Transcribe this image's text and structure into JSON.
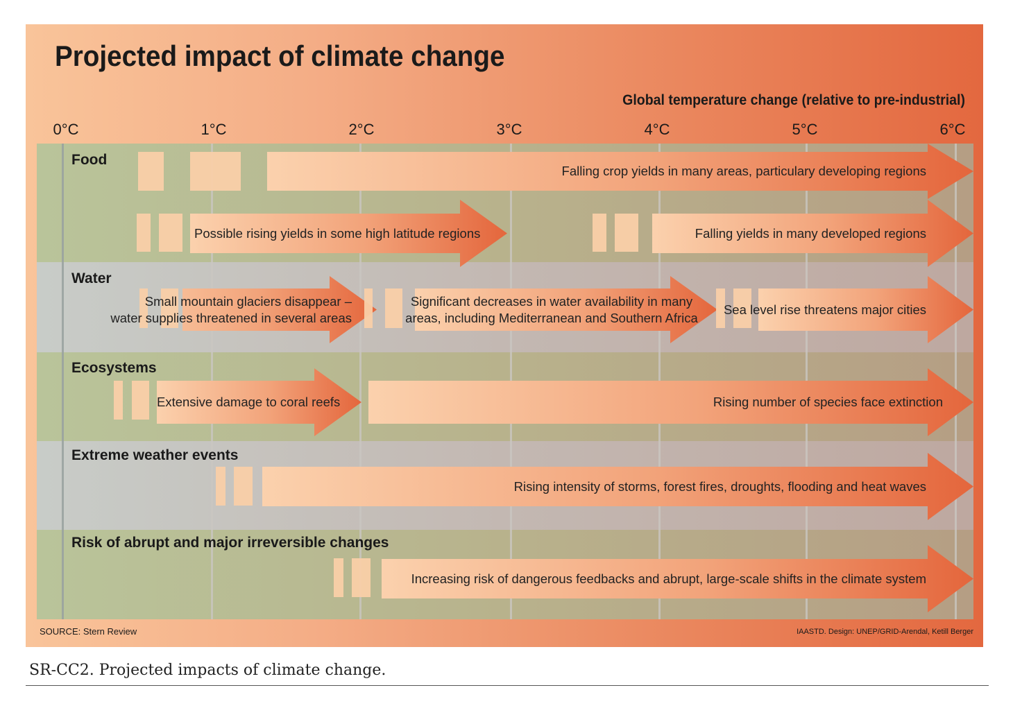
{
  "title": "Projected impact of climate change",
  "axis": {
    "title": "Global temperature change (relative to pre-industrial)",
    "ticks": [
      "0°C",
      "1°C",
      "2°C",
      "3°C",
      "4°C",
      "5°C",
      "6°C"
    ]
  },
  "categories": {
    "food": "Food",
    "water": "Water",
    "ecosystems": "Ecosystems",
    "extreme": "Extreme weather events",
    "abrupt": "Risk of abrupt and major irreversible changes"
  },
  "impacts": {
    "falling_crop_yields": "Falling crop yields in many areas, particulary developing regions",
    "rising_yields": "Possible rising yields in some high latitude regions",
    "falling_developed": "Falling yields in many developed regions",
    "glaciers_line1": "Small mountain glaciers disappear –",
    "glaciers_line2": "water supplies threatened in several areas",
    "water_decrease_line1": "Significant decreases in water availability in many",
    "water_decrease_line2": "areas, including Mediterranean and Southern Africa",
    "sea_level": "Sea level rise threatens major cities",
    "coral": "Extensive damage to coral reefs",
    "species": "Rising number of species face extinction",
    "storms": "Rising intensity of storms, forest fires, droughts, flooding and heat waves",
    "feedbacks": "Increasing risk of dangerous feedbacks and abrupt, large-scale shifts in the climate system"
  },
  "source": "SOURCE: Stern Review",
  "credit": "IAASTD. Design: UNEP/GRID-Arendal, Ketill Berger",
  "caption": "SR-CC2. Projected impacts of climate change.",
  "colors": {
    "background_light": "#f9c49a",
    "background_dark": "#e3683f",
    "arrow_light": "#fbd1ad",
    "arrow_dark": "#e4663c",
    "band_green": "#b9c49a",
    "band_grey": "#c8ccc8"
  }
}
